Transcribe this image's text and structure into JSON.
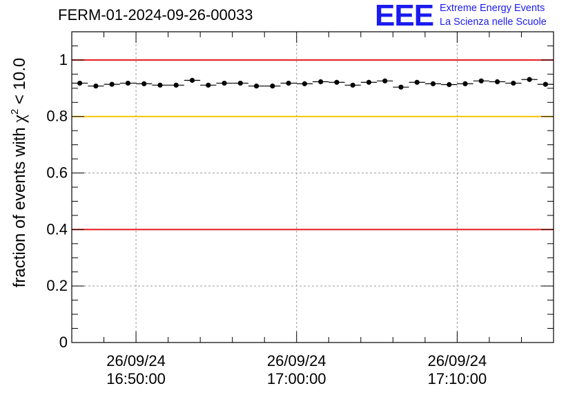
{
  "page": {
    "title": "FERM-01-2024-09-26-00033"
  },
  "logo": {
    "mark": "EEE",
    "line1": "Extreme Energy Events",
    "line2": "La Scienza nelle Scuole",
    "color": "#1b1bf0"
  },
  "chart_data": {
    "type": "scatter",
    "ylabel_prefix": "fraction of events with ",
    "ylabel_chi": "χ",
    "ylabel_exp": "2",
    "ylabel_suffix": " < 10.0",
    "ylim": [
      0,
      1.1
    ],
    "xlim": [
      "2024-09-26 16:46:00",
      "2024-09-26 17:16:00"
    ],
    "y_ticks": [
      {
        "value": 0,
        "label": "0"
      },
      {
        "value": 0.2,
        "label": "0.2"
      },
      {
        "value": 0.4,
        "label": "0.4"
      },
      {
        "value": 0.6,
        "label": "0.6"
      },
      {
        "value": 0.8,
        "label": "0.8"
      },
      {
        "value": 1,
        "label": "1"
      }
    ],
    "x_ticks": [
      {
        "time": "2024-09-26 16:50:00",
        "date": "26/09/24",
        "clock": "16:50:00"
      },
      {
        "time": "2024-09-26 17:00:00",
        "date": "26/09/24",
        "clock": "17:00:00"
      },
      {
        "time": "2024-09-26 17:10:00",
        "date": "26/09/24",
        "clock": "17:10:00"
      }
    ],
    "reference_lines": [
      {
        "y": 1.0,
        "color": "#e8151a"
      },
      {
        "y": 0.8,
        "color": "#f5c400"
      },
      {
        "y": 0.4,
        "color": "#e8151a"
      }
    ],
    "grid": true,
    "series": [
      {
        "color": "#000000",
        "points": [
          {
            "x": "2024-09-26 16:46:30",
            "y": 0.918
          },
          {
            "x": "2024-09-26 16:47:30",
            "y": 0.908
          },
          {
            "x": "2024-09-26 16:48:30",
            "y": 0.914
          },
          {
            "x": "2024-09-26 16:49:30",
            "y": 0.918
          },
          {
            "x": "2024-09-26 16:50:30",
            "y": 0.916
          },
          {
            "x": "2024-09-26 16:51:30",
            "y": 0.911
          },
          {
            "x": "2024-09-26 16:52:30",
            "y": 0.911
          },
          {
            "x": "2024-09-26 16:53:30",
            "y": 0.928
          },
          {
            "x": "2024-09-26 16:54:30",
            "y": 0.911
          },
          {
            "x": "2024-09-26 16:55:30",
            "y": 0.918
          },
          {
            "x": "2024-09-26 16:56:30",
            "y": 0.918
          },
          {
            "x": "2024-09-26 16:57:30",
            "y": 0.908
          },
          {
            "x": "2024-09-26 16:58:30",
            "y": 0.908
          },
          {
            "x": "2024-09-26 16:59:30",
            "y": 0.918
          },
          {
            "x": "2024-09-26 17:00:30",
            "y": 0.916
          },
          {
            "x": "2024-09-26 17:01:30",
            "y": 0.923
          },
          {
            "x": "2024-09-26 17:02:30",
            "y": 0.921
          },
          {
            "x": "2024-09-26 17:03:30",
            "y": 0.911
          },
          {
            "x": "2024-09-26 17:04:30",
            "y": 0.921
          },
          {
            "x": "2024-09-26 17:05:30",
            "y": 0.926
          },
          {
            "x": "2024-09-26 17:06:30",
            "y": 0.904
          },
          {
            "x": "2024-09-26 17:07:30",
            "y": 0.921
          },
          {
            "x": "2024-09-26 17:08:30",
            "y": 0.916
          },
          {
            "x": "2024-09-26 17:09:30",
            "y": 0.913
          },
          {
            "x": "2024-09-26 17:10:30",
            "y": 0.916
          },
          {
            "x": "2024-09-26 17:11:30",
            "y": 0.926
          },
          {
            "x": "2024-09-26 17:12:30",
            "y": 0.923
          },
          {
            "x": "2024-09-26 17:13:30",
            "y": 0.918
          },
          {
            "x": "2024-09-26 17:14:30",
            "y": 0.931
          },
          {
            "x": "2024-09-26 17:15:30",
            "y": 0.914
          }
        ]
      }
    ]
  }
}
